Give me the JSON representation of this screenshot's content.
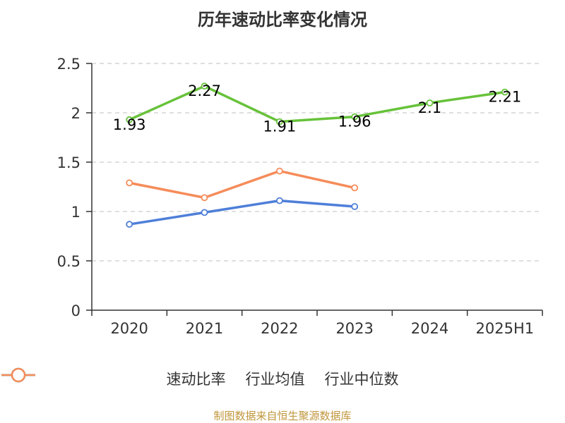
{
  "title": "历年速动比率变化情况",
  "source": "制图数据来自恒生聚源数据库",
  "chart_data": {
    "type": "line",
    "title": "历年速动比率变化情况",
    "xlabel": "",
    "ylabel": "",
    "categories": [
      "2020",
      "2021",
      "2022",
      "2023",
      "2024",
      "2025H1"
    ],
    "ylim": [
      0,
      2.5
    ],
    "yticks": [
      "0",
      "0.5",
      "1",
      "1.5",
      "2",
      "2.5"
    ],
    "grid": "horizontal dashed",
    "legend_position": "bottom",
    "series": [
      {
        "name": "速动比率",
        "color": "#67c23a",
        "values": [
          1.93,
          2.27,
          1.91,
          1.96,
          2.1,
          2.21
        ],
        "labels": [
          "1.93",
          "2.27",
          "1.91",
          "1.96",
          "2.1",
          "2.21"
        ]
      },
      {
        "name": "行业均值",
        "color": "#4e7fd9",
        "values": [
          0.87,
          0.99,
          1.11,
          1.05,
          null,
          null
        ]
      },
      {
        "name": "行业中位数",
        "color": "#f58c5a",
        "values": [
          1.29,
          1.14,
          1.41,
          1.24,
          null,
          null
        ]
      }
    ]
  }
}
